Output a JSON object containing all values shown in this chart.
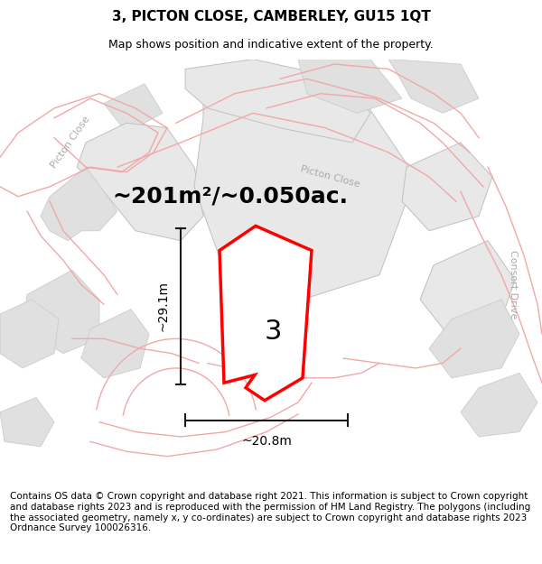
{
  "title": "3, PICTON CLOSE, CAMBERLEY, GU15 1QT",
  "subtitle": "Map shows position and indicative extent of the property.",
  "area_text": "~201m²/~0.050ac.",
  "width_label": "~20.8m",
  "height_label": "~29.1m",
  "plot_number": "3",
  "footer": "Contains OS data © Crown copyright and database right 2021. This information is subject to Crown copyright and database rights 2023 and is reproduced with the permission of HM Land Registry. The polygons (including the associated geometry, namely x, y co-ordinates) are subject to Crown copyright and database rights 2023 Ordnance Survey 100026316.",
  "bg_color": "#f7f7f7",
  "plot_fill": "white",
  "plot_edge": "#ff0000",
  "road_color": "#f0a8a8",
  "building_color": "#e0e0e0",
  "building_edge": "#cccccc",
  "parcel_color": "#e8e8e8",
  "parcel_edge": "#c0c0c0",
  "dim_color": "#1a1a1a",
  "road_label_color": "#aaaaaa",
  "title_fontsize": 11,
  "subtitle_fontsize": 9,
  "area_fontsize": 18,
  "dim_fontsize": 10,
  "road_label_fontsize": 8,
  "number_fontsize": 22,
  "footer_fontsize": 7.5
}
